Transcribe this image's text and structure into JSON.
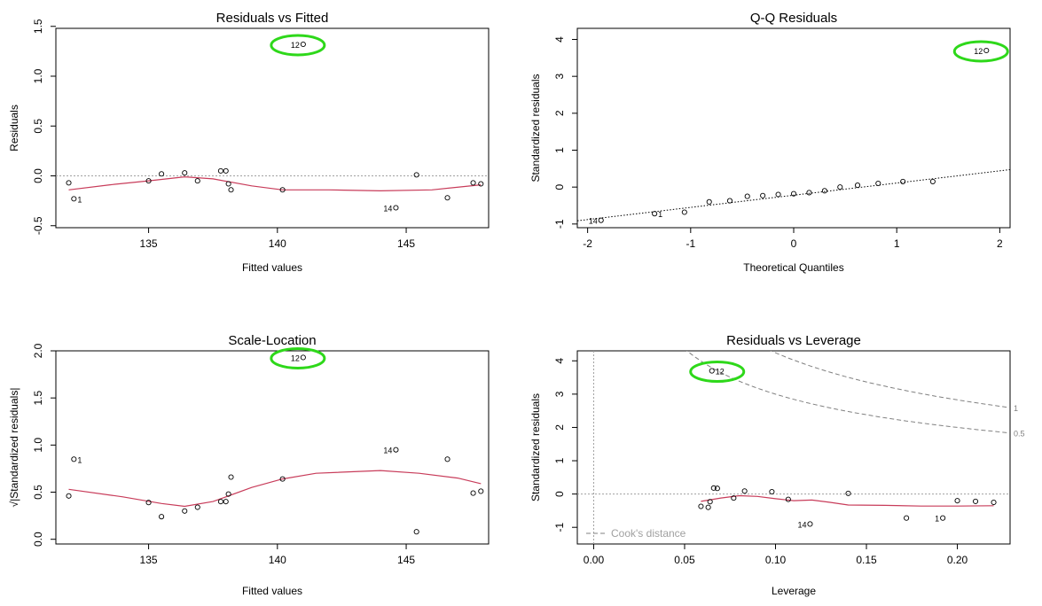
{
  "chart_data": [
    {
      "type": "scatter",
      "title": "Residuals vs Fitted",
      "xlabel": "Fitted values",
      "ylabel": "Residuals",
      "xlim": [
        131.4,
        148.2
      ],
      "ylim": [
        -0.52,
        1.48
      ],
      "xticks": [
        135,
        140,
        145
      ],
      "yticks": [
        -0.5,
        0.0,
        0.5,
        1.0,
        1.5
      ],
      "ref_line": 0,
      "points": [
        {
          "x": 131.9,
          "y": -0.07
        },
        {
          "x": 132.1,
          "y": -0.23,
          "label": "1"
        },
        {
          "x": 135.0,
          "y": -0.05
        },
        {
          "x": 135.5,
          "y": 0.02
        },
        {
          "x": 136.4,
          "y": 0.03
        },
        {
          "x": 136.9,
          "y": -0.05
        },
        {
          "x": 137.8,
          "y": 0.05
        },
        {
          "x": 138.0,
          "y": 0.05
        },
        {
          "x": 138.1,
          "y": -0.08
        },
        {
          "x": 138.2,
          "y": -0.14
        },
        {
          "x": 140.2,
          "y": -0.14
        },
        {
          "x": 141.0,
          "y": 1.32,
          "label": "12",
          "highlight": true
        },
        {
          "x": 144.6,
          "y": -0.32,
          "label": "14"
        },
        {
          "x": 145.4,
          "y": 0.01
        },
        {
          "x": 146.6,
          "y": -0.22
        },
        {
          "x": 147.6,
          "y": -0.07
        },
        {
          "x": 147.9,
          "y": -0.08
        }
      ],
      "smooth": [
        [
          131.9,
          -0.14
        ],
        [
          133.5,
          -0.09
        ],
        [
          135.0,
          -0.05
        ],
        [
          136.4,
          -0.01
        ],
        [
          137.5,
          -0.03
        ],
        [
          139.0,
          -0.1
        ],
        [
          140.2,
          -0.14
        ],
        [
          142.0,
          -0.14
        ],
        [
          144.0,
          -0.15
        ],
        [
          146.0,
          -0.14
        ],
        [
          147.9,
          -0.09
        ]
      ]
    },
    {
      "type": "scatter",
      "title": "Q-Q Residuals",
      "xlabel": "Theoretical Quantiles",
      "ylabel": "Standardized residuals",
      "xlim": [
        -2.1,
        2.1
      ],
      "ylim": [
        -1.1,
        4.3
      ],
      "xticks": [
        -2,
        -1,
        0,
        1,
        2
      ],
      "yticks": [
        -1,
        0,
        1,
        2,
        3,
        4
      ],
      "ref_line": {
        "slope": 0.33,
        "intercept": -0.22
      },
      "points": [
        {
          "x": -1.87,
          "y": -0.9,
          "label": "14"
        },
        {
          "x": -1.35,
          "y": -0.72,
          "label": "1"
        },
        {
          "x": -1.06,
          "y": -0.68
        },
        {
          "x": -0.82,
          "y": -0.4
        },
        {
          "x": -0.62,
          "y": -0.37
        },
        {
          "x": -0.45,
          "y": -0.25
        },
        {
          "x": -0.3,
          "y": -0.23
        },
        {
          "x": -0.15,
          "y": -0.2
        },
        {
          "x": 0.0,
          "y": -0.18
        },
        {
          "x": 0.15,
          "y": -0.15
        },
        {
          "x": 0.3,
          "y": -0.1
        },
        {
          "x": 0.45,
          "y": 0.0
        },
        {
          "x": 0.62,
          "y": 0.05
        },
        {
          "x": 0.82,
          "y": 0.1
        },
        {
          "x": 1.06,
          "y": 0.15
        },
        {
          "x": 1.35,
          "y": 0.15
        },
        {
          "x": 1.87,
          "y": 3.7,
          "label": "12",
          "highlight": true
        }
      ]
    },
    {
      "type": "scatter",
      "title": "Scale-Location",
      "xlabel": "Fitted values",
      "ylabel": "√|Standardized residuals|",
      "xlim": [
        131.4,
        148.2
      ],
      "ylim": [
        -0.05,
        2.0
      ],
      "xticks": [
        135,
        140,
        145
      ],
      "yticks": [
        0.0,
        0.5,
        1.0,
        1.5,
        2.0
      ],
      "points": [
        {
          "x": 131.9,
          "y": 0.46
        },
        {
          "x": 132.1,
          "y": 0.85,
          "label": "1"
        },
        {
          "x": 135.0,
          "y": 0.39
        },
        {
          "x": 135.5,
          "y": 0.24
        },
        {
          "x": 136.4,
          "y": 0.3
        },
        {
          "x": 136.9,
          "y": 0.34
        },
        {
          "x": 137.8,
          "y": 0.4
        },
        {
          "x": 138.0,
          "y": 0.4
        },
        {
          "x": 138.1,
          "y": 0.48
        },
        {
          "x": 138.2,
          "y": 0.66
        },
        {
          "x": 140.2,
          "y": 0.64
        },
        {
          "x": 141.0,
          "y": 1.93,
          "label": "12",
          "highlight": true
        },
        {
          "x": 144.6,
          "y": 0.95,
          "label": "14"
        },
        {
          "x": 145.4,
          "y": 0.08
        },
        {
          "x": 146.6,
          "y": 0.85
        },
        {
          "x": 147.6,
          "y": 0.49
        },
        {
          "x": 147.9,
          "y": 0.51
        }
      ],
      "smooth": [
        [
          131.9,
          0.53
        ],
        [
          134.0,
          0.45
        ],
        [
          135.5,
          0.38
        ],
        [
          136.4,
          0.35
        ],
        [
          137.5,
          0.4
        ],
        [
          139.0,
          0.55
        ],
        [
          140.2,
          0.64
        ],
        [
          141.5,
          0.7
        ],
        [
          144.0,
          0.73
        ],
        [
          145.5,
          0.7
        ],
        [
          147.0,
          0.65
        ],
        [
          147.9,
          0.59
        ]
      ]
    },
    {
      "type": "scatter",
      "title": "Residuals vs Leverage",
      "xlabel": "Leverage",
      "ylabel": "Standardized residuals",
      "xlim": [
        -0.009,
        0.229
      ],
      "ylim": [
        -1.5,
        4.3
      ],
      "xticks": [
        0.0,
        0.05,
        0.1,
        0.15,
        0.2
      ],
      "yticks": [
        -1,
        0,
        1,
        2,
        3,
        4
      ],
      "ref_line": 0,
      "points": [
        {
          "x": 0.059,
          "y": -0.37
        },
        {
          "x": 0.063,
          "y": -0.4
        },
        {
          "x": 0.064,
          "y": -0.23
        },
        {
          "x": 0.065,
          "y": 3.7,
          "label": "12",
          "highlight": true
        },
        {
          "x": 0.066,
          "y": 0.18
        },
        {
          "x": 0.068,
          "y": 0.17
        },
        {
          "x": 0.077,
          "y": -0.12
        },
        {
          "x": 0.083,
          "y": 0.09
        },
        {
          "x": 0.098,
          "y": 0.07
        },
        {
          "x": 0.107,
          "y": -0.16
        },
        {
          "x": 0.119,
          "y": -0.9,
          "label": "14"
        },
        {
          "x": 0.14,
          "y": 0.02
        },
        {
          "x": 0.172,
          "y": -0.72
        },
        {
          "x": 0.192,
          "y": -0.72,
          "label": "1"
        },
        {
          "x": 0.2,
          "y": -0.2
        },
        {
          "x": 0.21,
          "y": -0.22
        },
        {
          "x": 0.22,
          "y": -0.25
        }
      ],
      "smooth": [
        [
          0.059,
          -0.22
        ],
        [
          0.07,
          -0.12
        ],
        [
          0.08,
          -0.05
        ],
        [
          0.09,
          -0.07
        ],
        [
          0.1,
          -0.14
        ],
        [
          0.11,
          -0.2
        ],
        [
          0.12,
          -0.18
        ],
        [
          0.13,
          -0.25
        ],
        [
          0.14,
          -0.33
        ],
        [
          0.16,
          -0.34
        ],
        [
          0.18,
          -0.36
        ],
        [
          0.2,
          -0.36
        ],
        [
          0.22,
          -0.35
        ]
      ],
      "cooks_distance": {
        "levels": [
          "1",
          "0.5"
        ],
        "p": 2
      },
      "legend": "Cook's distance"
    }
  ]
}
